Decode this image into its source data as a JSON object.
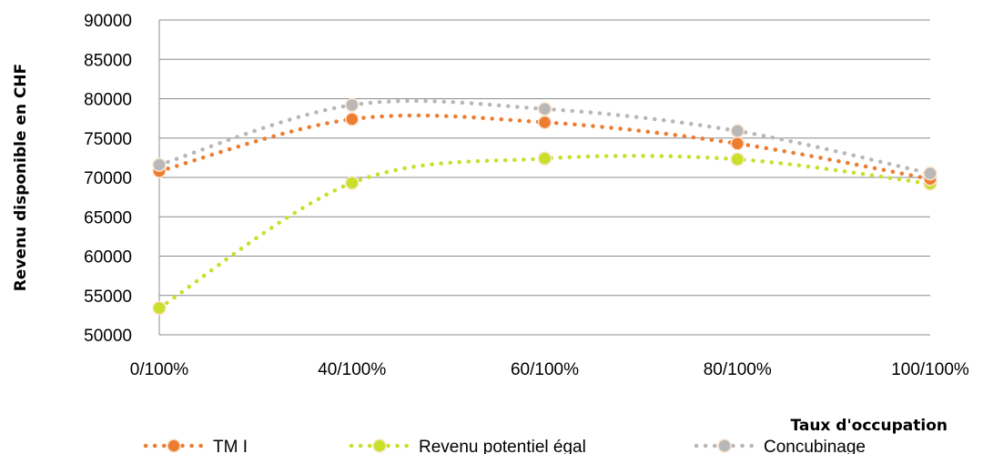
{
  "chart_data": {
    "type": "line",
    "title": "",
    "xlabel": "Taux d'occupation",
    "ylabel": "Revenu disponible en CHF",
    "categories": [
      "0/100%",
      "40/100%",
      "60/100%",
      "80/100%",
      "100/100%"
    ],
    "ylim": [
      50000,
      90000
    ],
    "yticks": [
      50000,
      55000,
      60000,
      65000,
      70000,
      75000,
      80000,
      85000,
      90000
    ],
    "grid": true,
    "legend_position": "bottom",
    "series": [
      {
        "name": "TM I",
        "color": "#ed7d31",
        "values": [
          70800,
          77400,
          77000,
          74300,
          69800
        ]
      },
      {
        "name": "Revenu potentiel égal",
        "color": "#c8e02a",
        "values": [
          53400,
          69300,
          72400,
          72300,
          69200
        ]
      },
      {
        "name": "Concubinage",
        "color": "#b8b8b8",
        "values": [
          71600,
          79200,
          78700,
          75900,
          70500
        ]
      }
    ]
  }
}
